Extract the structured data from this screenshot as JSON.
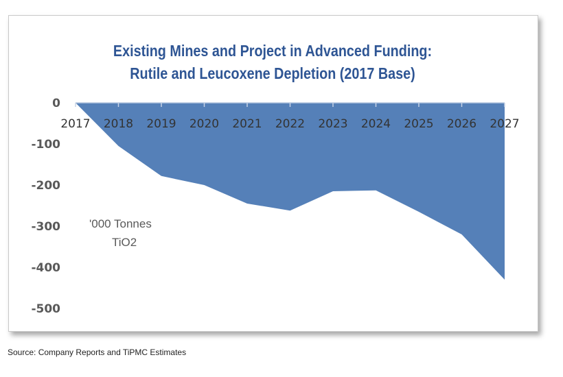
{
  "source_note": "Source: Company Reports and TiPMC Estimates",
  "chart_data": {
    "type": "area",
    "title_line1": "Existing Mines and Project in Advanced Funding:",
    "title_line2": "Rutile and Leucoxene Depletion (2017 Base)",
    "unit_line1": "'000 Tonnes",
    "unit_line2": "TiO2",
    "x": [
      "2017",
      "2018",
      "2019",
      "2020",
      "2021",
      "2022",
      "2023",
      "2024",
      "2025",
      "2026",
      "2027"
    ],
    "values": [
      0,
      -105,
      -178,
      -200,
      -245,
      -262,
      -215,
      -213,
      -265,
      -320,
      -430
    ],
    "ylim": [
      -500,
      0
    ],
    "yticks": [
      0,
      -100,
      -200,
      -300,
      -400,
      -500
    ],
    "series_color": "#5580b8",
    "title_color": "#2e5594"
  }
}
